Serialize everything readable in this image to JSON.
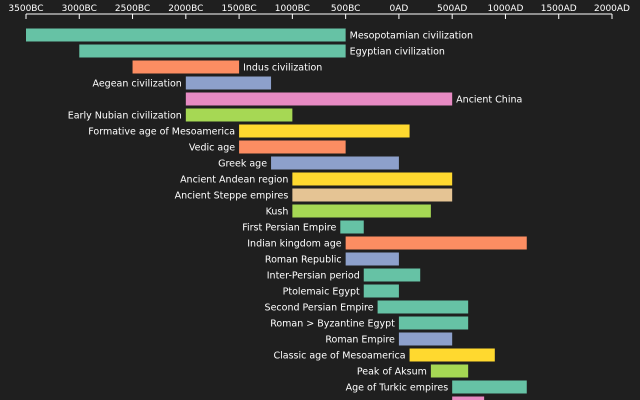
{
  "chart_data": {
    "type": "bar",
    "orientation": "horizontal-timeline",
    "title": "",
    "xlabel": "",
    "ylabel": "",
    "xlim": [
      -3500,
      2000
    ],
    "axis_position": "top",
    "tick_values": [
      -3500,
      -3000,
      -2500,
      -2000,
      -1500,
      -1000,
      -500,
      0,
      500,
      1000,
      1500,
      2000
    ],
    "tick_labels": [
      "3500BC",
      "3000BC",
      "2500BC",
      "2000BC",
      "1500BC",
      "1000BC",
      "500BC",
      "0AD",
      "500AD",
      "1000AD",
      "1500AD",
      "2000AD"
    ],
    "grid": false,
    "legend": "none",
    "background": "#1f1f1f",
    "bars": [
      {
        "label": "Mesopotamian civilization",
        "start": -3500,
        "end": -500,
        "color": "#66c2a5",
        "label_side": "right"
      },
      {
        "label": "Egyptian civilization",
        "start": -3000,
        "end": -500,
        "color": "#66c2a5",
        "label_side": "right"
      },
      {
        "label": "Indus civilization",
        "start": -2500,
        "end": -1500,
        "color": "#fc8d62",
        "label_side": "right"
      },
      {
        "label": "Aegean civilization",
        "start": -2000,
        "end": -1200,
        "color": "#8da0cb",
        "label_side": "left"
      },
      {
        "label": "Ancient China",
        "start": -2000,
        "end": 500,
        "color": "#e78ac3",
        "label_side": "right"
      },
      {
        "label": "Early Nubian civilization",
        "start": -2000,
        "end": -1000,
        "color": "#a6d854",
        "label_side": "left"
      },
      {
        "label": "Formative age of Mesoamerica",
        "start": -1500,
        "end": 100,
        "color": "#ffd92f",
        "label_side": "left"
      },
      {
        "label": "Vedic age",
        "start": -1500,
        "end": -500,
        "color": "#fc8d62",
        "label_side": "left"
      },
      {
        "label": "Greek age",
        "start": -1200,
        "end": 0,
        "color": "#8da0cb",
        "label_side": "left"
      },
      {
        "label": "Ancient Andean region",
        "start": -1000,
        "end": 500,
        "color": "#ffd92f",
        "label_side": "left"
      },
      {
        "label": "Ancient Steppe empires",
        "start": -1000,
        "end": 500,
        "color": "#e5c494",
        "label_side": "left"
      },
      {
        "label": "Kush",
        "start": -1000,
        "end": 300,
        "color": "#a6d854",
        "label_side": "left"
      },
      {
        "label": "First Persian Empire",
        "start": -550,
        "end": -330,
        "color": "#66c2a5",
        "label_side": "left"
      },
      {
        "label": "Indian kingdom age",
        "start": -500,
        "end": 1200,
        "color": "#fc8d62",
        "label_side": "left"
      },
      {
        "label": "Roman Republic",
        "start": -500,
        "end": 0,
        "color": "#8da0cb",
        "label_side": "left"
      },
      {
        "label": "Inter-Persian period",
        "start": -330,
        "end": 200,
        "color": "#66c2a5",
        "label_side": "left"
      },
      {
        "label": "Ptolemaic Egypt",
        "start": -330,
        "end": 0,
        "color": "#66c2a5",
        "label_side": "left"
      },
      {
        "label": "Second Persian Empire",
        "start": -200,
        "end": 650,
        "color": "#66c2a5",
        "label_side": "left"
      },
      {
        "label": "Roman > Byzantine Egypt",
        "start": 0,
        "end": 650,
        "color": "#66c2a5",
        "label_side": "left"
      },
      {
        "label": "Roman Empire",
        "start": 0,
        "end": 500,
        "color": "#8da0cb",
        "label_side": "left"
      },
      {
        "label": "Classic age of Mesoamerica",
        "start": 100,
        "end": 900,
        "color": "#ffd92f",
        "label_side": "left"
      },
      {
        "label": "Peak of Aksum",
        "start": 300,
        "end": 650,
        "color": "#a6d854",
        "label_side": "left"
      },
      {
        "label": "Age of Turkic empires",
        "start": 500,
        "end": 1200,
        "color": "#66c2a5",
        "label_side": "left"
      },
      {
        "label": "",
        "start": 500,
        "end": 800,
        "color": "#e78ac3",
        "label_side": "left"
      }
    ]
  }
}
